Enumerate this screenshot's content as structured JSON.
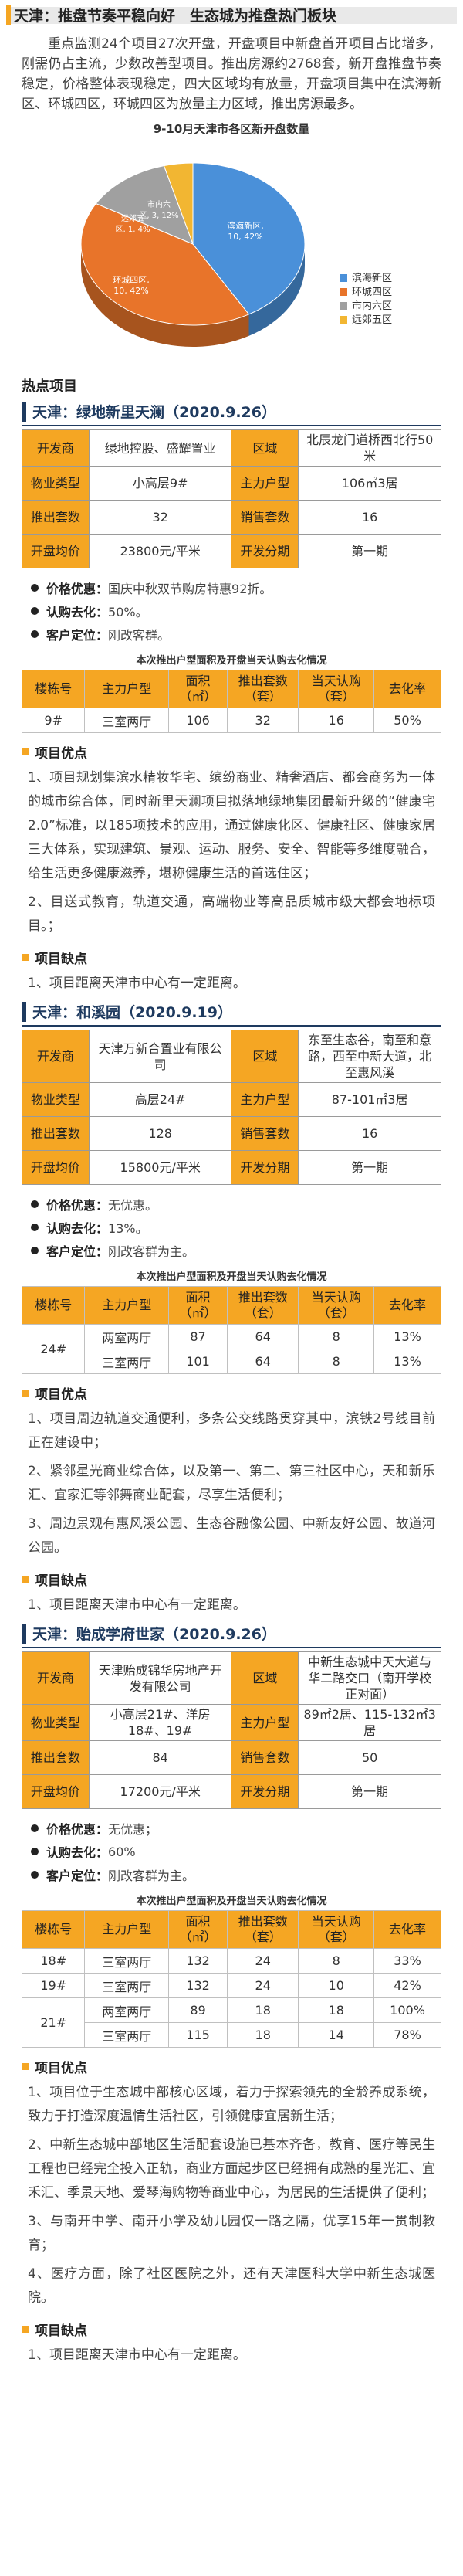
{
  "header": {
    "title": "天津：推盘节奏平稳向好　生态城为推盘热门板块"
  },
  "intro": "重点监测24个项目27次开盘，开盘项目中新盘首开项目占比增多，刚需仍占主流，少数改善型项目。推出房源约2768套，新开盘推盘节奏稳定，价格整体表现稳定，四大区域均有放量，开盘项目集中在滨海新区、环城四区，环城四区为放量主力区域，推出房源最多。",
  "chart_data": {
    "type": "pie",
    "title": "9-10月天津市各区新开盘数量",
    "categories": [
      "滨海新区",
      "环城四区",
      "市内六区",
      "远郊五区"
    ],
    "values": [
      10,
      10,
      3,
      1
    ],
    "data_labels": [
      "滨海新区,\n10, 42%",
      "环城四区,\n10, 42%",
      "市内六\n区, 3, 12%",
      "远郊五\n区, 1, 4%"
    ],
    "colors": [
      "#4a90d9",
      "#e8742a",
      "#a0a0a0",
      "#f2b632"
    ],
    "legend_position": "right"
  },
  "section": {
    "hot": "热点项目"
  },
  "projects": [
    {
      "title": "天津：绿地新里天澜（2020.9.26）",
      "info": [
        [
          "开发商",
          "绿地控股、盛耀置业",
          "区域",
          "北辰龙门道桥西北行50米"
        ],
        [
          "物业类型",
          "小高层9#",
          "主力户型",
          "106㎡3居"
        ],
        [
          "推出套数",
          "32",
          "销售套数",
          "16"
        ],
        [
          "开盘均价",
          "23800元/平米",
          "开发分期",
          "第一期"
        ]
      ],
      "bullets": [
        {
          "k": "价格优惠：",
          "v": "国庆中秋双节购房特惠92折。"
        },
        {
          "k": "认购去化：",
          "v": "50%。"
        },
        {
          "k": "客户定位：",
          "v": "刚改客群。"
        }
      ],
      "caption": "本次推出户型面积及开盘当天认购去化情况",
      "headers": [
        "楼栋号",
        "主力户型",
        "面积（㎡）",
        "推出套数（套）",
        "当天认购（套）",
        "去化率"
      ],
      "rows": [
        [
          "9#",
          "三室两厅",
          "106",
          "32",
          "16",
          "50%"
        ]
      ],
      "pros_title": "项目优点",
      "pros": [
        "1、项目规划集滨水精妆华宅、缤纷商业、精奢酒店、都会商务为一体的城市综合体，同时新里天澜项目拟落地绿地集团最新升级的“健康宅2.0”标准，以185项技术的应用，通过健康化区、健康社区、健康家居三大体系，实现建筑、景观、运动、服务、安全、智能等多维度融合，给生活更多健康滋养，堪称健康生活的首选住区；",
        "2、目送式教育，轨道交通，高端物业等高品质城市级大都会地标项目。；"
      ],
      "cons_title": "项目缺点",
      "cons": [
        "1、项目距离天津市中心有一定距离。"
      ]
    },
    {
      "title": "天津：和溪园（2020.9.19）",
      "info": [
        [
          "开发商",
          "天津万新合置业有限公司",
          "区域",
          "东至生态谷，南至和意路，西至中新大道，北至惠风溪"
        ],
        [
          "物业类型",
          "高层24#",
          "主力户型",
          "87-101㎡3居"
        ],
        [
          "推出套数",
          "128",
          "销售套数",
          "16"
        ],
        [
          "开盘均价",
          "15800元/平米",
          "开发分期",
          "第一期"
        ]
      ],
      "bullets": [
        {
          "k": "价格优惠：",
          "v": "无优惠。"
        },
        {
          "k": "认购去化：",
          "v": "13%。"
        },
        {
          "k": "客户定位：",
          "v": "刚改客群为主。"
        }
      ],
      "caption": "本次推出户型面积及开盘当天认购去化情况",
      "headers": [
        "楼栋号",
        "主力户型",
        "面积（㎡）",
        "推出套数（套）",
        "当天认购（套）",
        "去化率"
      ],
      "rows": [
        [
          "24#",
          "两室两厅",
          "87",
          "64",
          "8",
          "13%"
        ],
        [
          "",
          "三室两厅",
          "101",
          "64",
          "8",
          "13%"
        ]
      ],
      "pros_title": "项目优点",
      "pros": [
        "1、项目周边轨道交通便利，多条公交线路贯穿其中，滨铁2号线目前正在建设中；",
        "2、紧邻星光商业综合体，以及第一、第二、第三社区中心，天和新乐汇、宜家汇等邻舞商业配套，尽享生活便利；",
        "3、周边景观有惠风溪公园、生态谷融像公园、中新友好公园、故道河公园。"
      ],
      "cons_title": "项目缺点",
      "cons": [
        "1、项目距离天津市中心有一定距离。"
      ]
    },
    {
      "title": "天津：贻成学府世家（2020.9.26）",
      "info": [
        [
          "开发商",
          "天津贻成锦华房地产开发有限公司",
          "区域",
          "中新生态城中天大道与华二路交口（南开学校正对面）"
        ],
        [
          "物业类型",
          "小高层21#、洋房18#、19#",
          "主力户型",
          "89㎡2居、115-132㎡3居"
        ],
        [
          "推出套数",
          "84",
          "销售套数",
          "50"
        ],
        [
          "开盘均价",
          "17200元/平米",
          "开发分期",
          "第一期"
        ]
      ],
      "bullets": [
        {
          "k": "价格优惠：",
          "v": "无优惠；"
        },
        {
          "k": "认购去化：",
          "v": "60%"
        },
        {
          "k": "客户定位：",
          "v": "刚改客群为主。"
        }
      ],
      "caption": "本次推出户型面积及开盘当天认购去化情况",
      "headers": [
        "楼栋号",
        "主力户型",
        "面积（㎡）",
        "推出套数（套）",
        "当天认购（套）",
        "去化率"
      ],
      "rows": [
        [
          "18#",
          "三室两厅",
          "132",
          "24",
          "8",
          "33%"
        ],
        [
          "19#",
          "三室两厅",
          "132",
          "24",
          "10",
          "42%"
        ],
        [
          "21#",
          "两室两厅",
          "89",
          "18",
          "18",
          "100%"
        ],
        [
          "",
          "三室两厅",
          "115",
          "18",
          "14",
          "78%"
        ]
      ],
      "pros_title": "项目优点",
      "pros": [
        "1、项目位于生态城中部核心区域，着力于探索领先的全龄养成系统，致力于打造深度温情生活社区，引领健康宜居新生活；",
        "2、中新生态城中部地区生活配套设施已基本齐备，教育、医疗等民生工程也已经完全投入正轨，商业方面起步区已经拥有成熟的星光汇、宜禾汇、季景天地、爱琴海购物等商业中心，为居民的生活提供了便利；",
        "3、与南开中学、南开小学及幼儿园仅一路之隔，优享15年一贯制教育；",
        "4、医疗方面，除了社区医院之外，还有天津医科大学中新生态城医院。"
      ],
      "cons_title": "项目缺点",
      "cons": [
        "1、项目距离天津市中心有一定距离。"
      ]
    }
  ]
}
